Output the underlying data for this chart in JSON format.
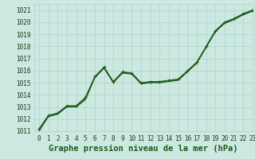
{
  "title": "Graphe pression niveau de la mer (hPa)",
  "xlim": [
    -0.5,
    23
  ],
  "ylim": [
    1011,
    1021.5
  ],
  "xticks": [
    0,
    1,
    2,
    3,
    4,
    5,
    6,
    7,
    8,
    9,
    10,
    11,
    12,
    13,
    14,
    15,
    16,
    17,
    18,
    19,
    20,
    21,
    22,
    23
  ],
  "yticks": [
    1011,
    1012,
    1013,
    1014,
    1015,
    1016,
    1017,
    1018,
    1019,
    1020,
    1021
  ],
  "background_color": "#cce8e0",
  "grid_color": "#aad4cc",
  "line_color": "#1a5c1a",
  "series": [
    [
      1011.2,
      1012.3,
      1012.5,
      1013.1,
      1013.1,
      1013.8,
      1015.5,
      1016.3,
      1015.1,
      1015.9,
      1015.8,
      1015.0,
      1015.1,
      1015.1,
      1015.2,
      1015.3,
      1016.0,
      1016.7,
      1018.0,
      1019.3,
      1020.0,
      1020.3,
      1020.7,
      1021.0
    ],
    [
      1011.1,
      1012.25,
      1012.45,
      1013.05,
      1013.05,
      1013.7,
      1015.45,
      1016.25,
      1015.05,
      1015.85,
      1015.75,
      1014.95,
      1015.05,
      1015.05,
      1015.15,
      1015.25,
      1015.95,
      1016.65,
      1017.95,
      1019.25,
      1019.95,
      1020.25,
      1020.65,
      1020.95
    ],
    [
      1011.0,
      1012.2,
      1012.4,
      1013.0,
      1013.0,
      1013.6,
      1015.4,
      1016.2,
      1015.0,
      1015.8,
      1015.7,
      1014.9,
      1015.0,
      1015.0,
      1015.1,
      1015.2,
      1015.9,
      1016.6,
      1017.9,
      1019.2,
      1019.9,
      1020.2,
      1020.6,
      1020.9
    ]
  ],
  "title_fontsize": 7.5,
  "tick_fontsize": 5.5
}
